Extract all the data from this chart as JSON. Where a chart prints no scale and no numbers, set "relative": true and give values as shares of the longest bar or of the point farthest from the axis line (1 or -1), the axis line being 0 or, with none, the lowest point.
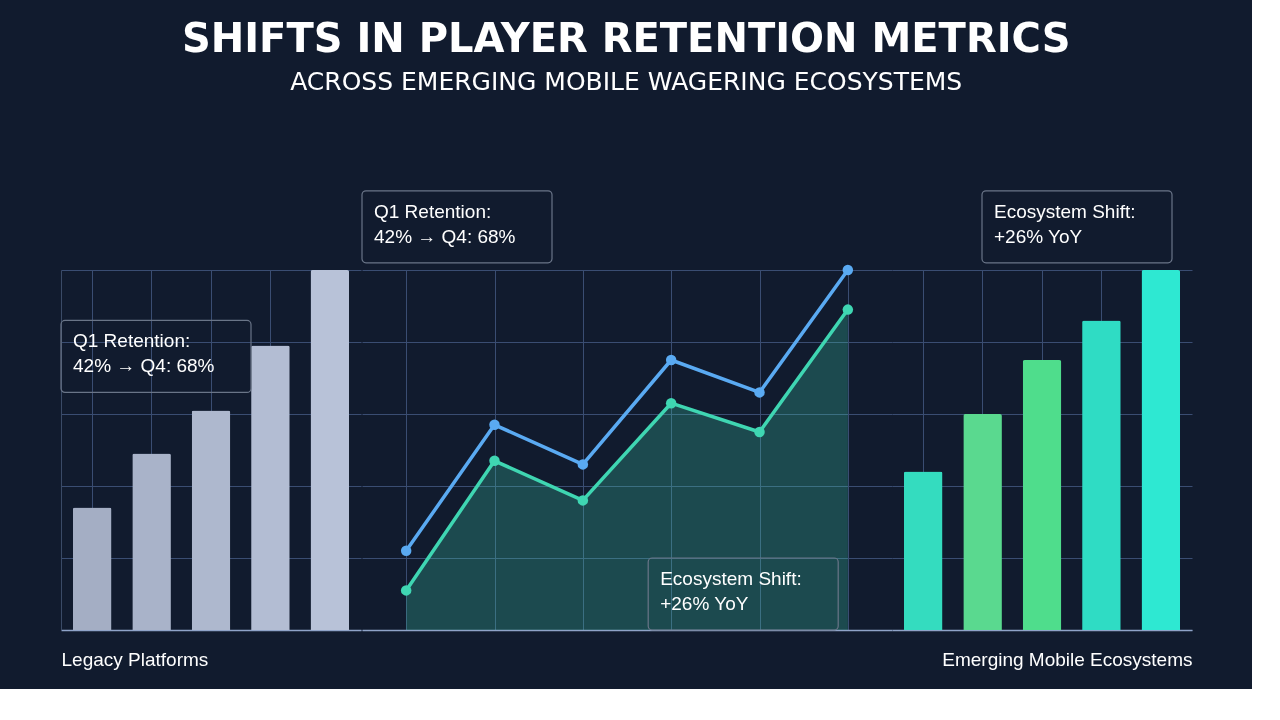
{
  "chart_data": [
    {
      "type": "bar",
      "title": "SHIFTS IN PLAYER RETENTION METRICS",
      "subtitle": "ACROSS EMERGING MOBILE WAGERING ECOSYSTEMS",
      "xlabel": "Legacy Platforms",
      "categories": [
        null,
        null,
        null,
        null,
        null
      ],
      "relative": true,
      "grid": true,
      "series": [
        {
          "colors": [
            "#a4aec4",
            "#a9b3c9",
            "#aeb8ce",
            "#b3bdd3",
            "#b8c2d8"
          ],
          "values": [
            0.34,
            0.49,
            0.61,
            0.79,
            1.0
          ]
        }
      ],
      "annotations": [
        "Q1 Retention:\n42% → Q4: 68%"
      ]
    },
    {
      "type": "line",
      "categories": [
        null,
        null,
        null,
        null,
        null,
        null
      ],
      "relative": true,
      "grid": true,
      "marker": "circle",
      "series": [
        {
          "type": "area",
          "color": "#3fd6b2",
          "values": [
            0.11,
            0.47,
            0.36,
            0.63,
            0.55,
            0.89
          ]
        },
        {
          "color": "#5aaaf2",
          "values": [
            0.22,
            0.57,
            0.46,
            0.75,
            0.66,
            1.0
          ]
        }
      ],
      "annotations": [
        "Q1 Retention:\n42% → Q4: 68%",
        "Ecosystem Shift:\n+26% YoY"
      ]
    },
    {
      "type": "bar",
      "xlabel": "Emerging Mobile Ecosystems",
      "categories": [
        null,
        null,
        null,
        null,
        null
      ],
      "relative": true,
      "grid": true,
      "series": [
        {
          "colors": [
            "#34dcbf",
            "#5ad98f",
            "#4fdd8c",
            "#2fdcc4",
            "#2ee8d2"
          ],
          "values": [
            0.44,
            0.6,
            0.75,
            0.86,
            1.0
          ]
        }
      ],
      "annotations": [
        "Ecosystem Shift:\n+26% YoY"
      ]
    }
  ]
}
